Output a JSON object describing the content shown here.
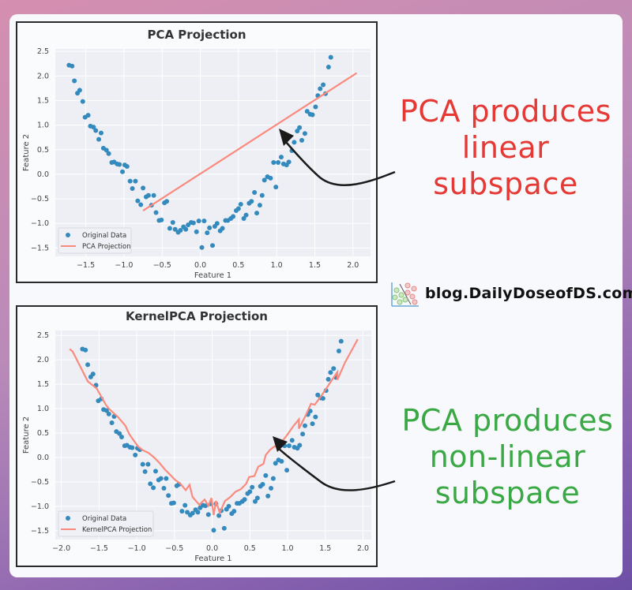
{
  "annotations": {
    "top": [
      "PCA produces",
      "linear",
      "subspace"
    ],
    "bottom": [
      "PCA produces",
      "non-linear",
      "subspace"
    ],
    "top_color": "#e53935",
    "bottom_color": "#3aa845"
  },
  "logo": {
    "text": "blog.DailyDoseofDS.com",
    "icon": "scatter-classification-icon"
  },
  "colors": {
    "points": "#348abd",
    "line": "#fa8a7d",
    "plot_bg": "#eeeff5",
    "grid": "#ffffff"
  },
  "chart_data": [
    {
      "type": "scatter+line",
      "title": "PCA Projection",
      "xlabel": "Feature 1",
      "ylabel": "Feature 2",
      "xlim": [
        -1.9,
        2.23
      ],
      "ylim": [
        -1.67,
        2.55
      ],
      "xticks": [
        -1.5,
        -1.0,
        -0.5,
        0.0,
        0.5,
        1.0,
        1.5,
        2.0
      ],
      "yticks": [
        -1.5,
        -1.0,
        -0.5,
        0.0,
        0.5,
        1.0,
        1.5,
        2.0,
        2.5
      ],
      "grid": true,
      "legend": {
        "position": "lower-left",
        "entries": [
          "Original Data",
          "PCA Projection"
        ]
      },
      "series": [
        {
          "name": "Original Data",
          "type": "scatter",
          "points": "original"
        },
        {
          "name": "PCA Projection",
          "type": "line",
          "x": [
            -0.75,
            2.05
          ],
          "y": [
            -0.74,
            2.06
          ]
        }
      ]
    },
    {
      "type": "scatter+line",
      "title": "KernelPCA Projection",
      "xlabel": "Feature 1",
      "ylabel": "Feature 2",
      "xlim": [
        -2.08,
        2.11
      ],
      "ylim": [
        -1.68,
        2.6
      ],
      "xticks": [
        -2.0,
        -1.5,
        -1.0,
        -0.5,
        0.0,
        0.5,
        1.0,
        1.5,
        2.0
      ],
      "yticks": [
        -1.5,
        -1.0,
        -0.5,
        0.0,
        0.5,
        1.0,
        1.5,
        2.0,
        2.5
      ],
      "grid": true,
      "legend": {
        "position": "lower-left",
        "entries": [
          "Original Data",
          "KernelPCA Projection"
        ]
      },
      "series": [
        {
          "name": "Original Data",
          "type": "scatter",
          "points": "original"
        },
        {
          "name": "KernelPCA Projection",
          "type": "line",
          "x": [
            -1.89,
            -1.85,
            -1.65,
            -1.53,
            -1.41,
            -1.37,
            -1.25,
            -1.15,
            -1.1,
            -1.05,
            -0.98,
            -0.92,
            -0.84,
            -0.77,
            -0.7,
            -0.63,
            -0.56,
            -0.49,
            -0.42,
            -0.35,
            -0.3,
            -0.26,
            -0.17,
            -0.1,
            -0.05,
            -0.01,
            0.02,
            0.05,
            0.1,
            0.17,
            0.24,
            0.31,
            0.38,
            0.45,
            0.49,
            0.56,
            0.61,
            0.68,
            0.71,
            0.77,
            0.82,
            0.91,
            0.98,
            1.08,
            1.15,
            1.15,
            1.24,
            1.31,
            1.36,
            1.46,
            1.59,
            1.66,
            1.66,
            1.76,
            1.93
          ],
          "y": [
            2.22,
            2.17,
            1.56,
            1.41,
            1.08,
            1.0,
            0.83,
            0.65,
            0.48,
            0.37,
            0.22,
            0.15,
            0.09,
            0.0,
            -0.11,
            -0.24,
            -0.35,
            -0.46,
            -0.54,
            -0.67,
            -0.56,
            -0.81,
            -0.97,
            -0.86,
            -0.99,
            -0.83,
            -1.18,
            -0.89,
            -1.13,
            -0.89,
            -0.81,
            -0.7,
            -0.65,
            -0.54,
            -0.4,
            -0.38,
            -0.19,
            -0.13,
            0.05,
            0.16,
            0.22,
            0.3,
            0.43,
            0.65,
            0.78,
            0.59,
            0.86,
            1.1,
            1.08,
            1.29,
            1.59,
            1.75,
            1.59,
            1.94,
            2.42
          ]
        }
      ]
    }
  ],
  "original_data": {
    "x": [
      -1.72,
      -1.68,
      -1.65,
      -1.61,
      -1.58,
      -1.54,
      -1.51,
      -1.47,
      -1.44,
      -1.4,
      -1.37,
      -1.33,
      -1.3,
      -1.27,
      -1.23,
      -1.2,
      -1.16,
      -1.13,
      -1.09,
      -1.06,
      -1.02,
      -0.99,
      -0.96,
      -0.92,
      -0.89,
      -0.85,
      -0.82,
      -0.78,
      -0.75,
      -0.71,
      -0.68,
      -0.64,
      -0.61,
      -0.58,
      -0.54,
      -0.51,
      -0.47,
      -0.44,
      -0.4,
      -0.36,
      -0.33,
      -0.29,
      -0.26,
      -0.22,
      -0.19,
      -0.16,
      -0.12,
      -0.09,
      -0.05,
      -0.02,
      0.02,
      0.05,
      0.09,
      0.12,
      0.16,
      0.19,
      0.22,
      0.26,
      0.29,
      0.33,
      0.36,
      0.4,
      0.43,
      0.47,
      0.5,
      0.53,
      0.57,
      0.6,
      0.64,
      0.67,
      0.71,
      0.74,
      0.78,
      0.81,
      0.84,
      0.88,
      0.92,
      0.96,
      0.99,
      1.02,
      1.06,
      1.09,
      1.13,
      1.16,
      1.2,
      1.23,
      1.27,
      1.3,
      1.33,
      1.37,
      1.4,
      1.44,
      1.47,
      1.51,
      1.54,
      1.57,
      1.61,
      1.64,
      1.68,
      1.71
    ],
    "y": [
      2.22,
      2.2,
      1.9,
      1.65,
      1.71,
      1.48,
      1.16,
      1.2,
      0.98,
      0.96,
      0.89,
      0.71,
      0.84,
      0.53,
      0.49,
      0.42,
      0.24,
      0.25,
      0.21,
      0.2,
      0.05,
      0.19,
      0.16,
      -0.14,
      -0.29,
      -0.14,
      -0.54,
      -0.62,
      -0.28,
      -0.46,
      -0.43,
      -0.63,
      -0.43,
      -0.78,
      -0.94,
      -0.93,
      -0.58,
      -0.55,
      -1.1,
      -0.98,
      -1.12,
      -1.18,
      -1.14,
      -1.07,
      -1.12,
      -1.03,
      -0.98,
      -0.99,
      -1.17,
      -0.95,
      -1.49,
      -0.95,
      -1.19,
      -1.09,
      -1.45,
      -1.06,
      -1.0,
      -1.15,
      -1.1,
      -0.94,
      -0.94,
      -0.9,
      -0.86,
      -0.74,
      -0.7,
      -0.61,
      -0.9,
      -0.83,
      -0.59,
      -0.55,
      -0.37,
      -0.79,
      -0.63,
      -0.43,
      -0.12,
      -0.05,
      -0.08,
      0.24,
      -0.26,
      0.24,
      0.35,
      0.21,
      0.19,
      0.25,
      0.48,
      0.65,
      0.88,
      0.95,
      0.69,
      0.83,
      1.28,
      1.22,
      1.21,
      1.37,
      1.6,
      1.74,
      1.82,
      1.64,
      2.18,
      2.38
    ]
  }
}
